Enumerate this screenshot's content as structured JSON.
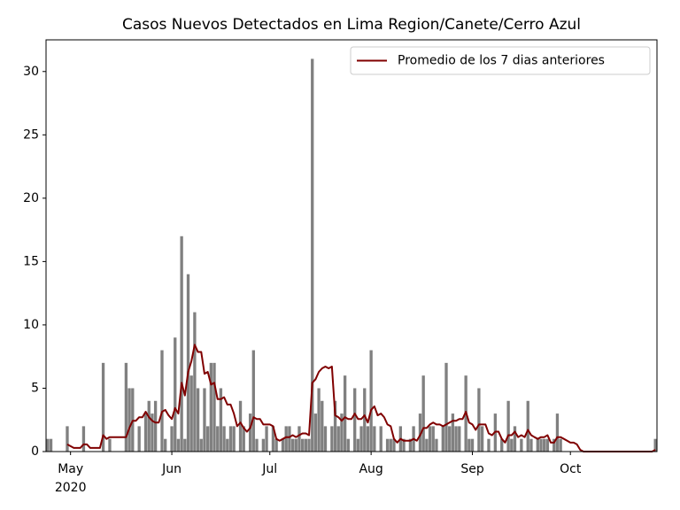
{
  "chart_data": {
    "type": "bar",
    "title": "Casos Nuevos Detectados en Lima Region/Canete/Cerro Azul",
    "categories": [
      null,
      null,
      null,
      null,
      null,
      null,
      null,
      "May",
      null,
      null,
      null,
      null,
      null,
      null,
      null,
      null,
      null,
      null,
      null,
      null,
      null,
      null,
      null,
      null,
      null,
      null,
      null,
      null,
      null,
      null,
      null,
      null,
      null,
      null,
      null,
      null,
      null,
      null,
      "Jun",
      null,
      null,
      null,
      null,
      null,
      null,
      null,
      null,
      null,
      null,
      null,
      null,
      null,
      null,
      null,
      null,
      null,
      null,
      null,
      null,
      null,
      null,
      null,
      null,
      null,
      null,
      null,
      null,
      null,
      "Jul",
      null,
      null,
      null,
      null,
      null,
      null,
      null,
      null,
      null,
      null,
      null,
      null,
      null,
      null,
      null,
      null,
      null,
      null,
      null,
      null,
      null,
      null,
      null,
      null,
      null,
      null,
      null,
      null,
      null,
      null,
      "Aug",
      null,
      null,
      null,
      null,
      null,
      null,
      null,
      null,
      null,
      null,
      null,
      null,
      null,
      null,
      null,
      null,
      null,
      null,
      null,
      null,
      null,
      null,
      null,
      null,
      null,
      null,
      null,
      null,
      null,
      null,
      "Sep",
      null,
      null,
      null,
      null,
      null,
      null,
      null,
      null,
      null,
      null,
      null,
      null,
      null,
      null,
      null,
      null,
      null,
      null,
      null,
      null,
      null,
      null,
      null,
      null,
      null,
      null,
      null,
      null,
      null,
      "Oct",
      null,
      null,
      null,
      null,
      null,
      null,
      null,
      null,
      null,
      null,
      null,
      null,
      null,
      null,
      null,
      null,
      null,
      null,
      null,
      null,
      null,
      null,
      null,
      null,
      null,
      null
    ],
    "year_label": "2020",
    "color": "#808080",
    "values": [
      1,
      1,
      0,
      0,
      0,
      0,
      2,
      0,
      0,
      0,
      0,
      2,
      0,
      0,
      0,
      0,
      0,
      7,
      0,
      1,
      0,
      0,
      0,
      0,
      7,
      5,
      5,
      0,
      2,
      0,
      3,
      4,
      3,
      4,
      0,
      8,
      1,
      0,
      2,
      9,
      1,
      17,
      1,
      14,
      6,
      11,
      5,
      1,
      5,
      2,
      7,
      7,
      2,
      5,
      2,
      1,
      2,
      2,
      0,
      4,
      2,
      0,
      3,
      8,
      1,
      0,
      1,
      2,
      0,
      2,
      1,
      0,
      1,
      2,
      2,
      1,
      1,
      2,
      1,
      1,
      1,
      31,
      3,
      5,
      4,
      2,
      0,
      2,
      4,
      2,
      3,
      6,
      1,
      0,
      5,
      1,
      2,
      5,
      2,
      8,
      2,
      0,
      2,
      0,
      1,
      1,
      1,
      0,
      2,
      1,
      0,
      1,
      2,
      0,
      3,
      6,
      1,
      2,
      2,
      1,
      0,
      2,
      7,
      2,
      3,
      2,
      2,
      0,
      6,
      1,
      1,
      0,
      5,
      2,
      0,
      1,
      0,
      3,
      0,
      1,
      0,
      4,
      1,
      2,
      0,
      1,
      0,
      4,
      1,
      0,
      1,
      1,
      1,
      1,
      0,
      1,
      3,
      1,
      0,
      0,
      0,
      0,
      0,
      0,
      0,
      0,
      0,
      0,
      0,
      0,
      0,
      0,
      0,
      0,
      0,
      0,
      0,
      0,
      0,
      0,
      0,
      0,
      0,
      0,
      0,
      0,
      1
    ],
    "series": [
      {
        "name": "Promedio de los 7 dias anteriores",
        "type": "line",
        "color": "#800000",
        "values": [
          null,
          null,
          null,
          null,
          null,
          null,
          0.57,
          0.43,
          0.29,
          0.29,
          0.29,
          0.57,
          0.57,
          0.29,
          0.29,
          0.29,
          0.29,
          1.29,
          1,
          1.14,
          1.14,
          1.14,
          1.14,
          1.14,
          1.14,
          1.86,
          2.43,
          2.43,
          2.71,
          2.71,
          3.14,
          2.71,
          2.43,
          2.29,
          2.29,
          3.14,
          3.29,
          2.86,
          2.57,
          3.43,
          3,
          5.43,
          4.43,
          6.29,
          7.14,
          8.43,
          7.86,
          7.86,
          6.14,
          6.29,
          5.29,
          5.43,
          4.14,
          4.14,
          4.29,
          3.71,
          3.71,
          3,
          2,
          2.29,
          1.86,
          1.57,
          1.86,
          2.71,
          2.57,
          2.57,
          2.14,
          2.14,
          2.14,
          2,
          1,
          0.86,
          1,
          1.14,
          1.14,
          1.29,
          1.14,
          1.29,
          1.43,
          1.43,
          1.29,
          5.43,
          5.71,
          6.29,
          6.57,
          6.71,
          6.57,
          6.71,
          2.86,
          2.71,
          2.43,
          2.71,
          2.57,
          2.57,
          3,
          2.57,
          2.57,
          2.86,
          2.29,
          3.29,
          3.57,
          2.86,
          3,
          2.71,
          2.14,
          2,
          1,
          0.71,
          1,
          0.86,
          0.86,
          0.86,
          1,
          0.86,
          1.29,
          1.86,
          1.86,
          2.14,
          2.29,
          2.14,
          2.14,
          2,
          2.14,
          2.29,
          2.43,
          2.43,
          2.57,
          2.57,
          3.14,
          2.29,
          2.14,
          1.71,
          2.14,
          2.14,
          2.14,
          1.43,
          1.29,
          1.57,
          1.57,
          1,
          0.71,
          1.29,
          1.29,
          1.57,
          1.14,
          1.29,
          1.14,
          1.71,
          1.29,
          1.14,
          1,
          1.14,
          1.14,
          1.29,
          0.71,
          0.71,
          1.14,
          1.14,
          1,
          0.86,
          0.71,
          0.71,
          0.57,
          0.14,
          0,
          0,
          0,
          0,
          0,
          0,
          0,
          0,
          0,
          0,
          0,
          0,
          0,
          0,
          0,
          0,
          0,
          0,
          0,
          0,
          0,
          0,
          0.14
        ]
      }
    ],
    "ylim": [
      0,
      32.5
    ],
    "yticks": [
      0,
      5,
      10,
      15,
      20,
      25,
      30
    ],
    "legend": "upper right"
  }
}
